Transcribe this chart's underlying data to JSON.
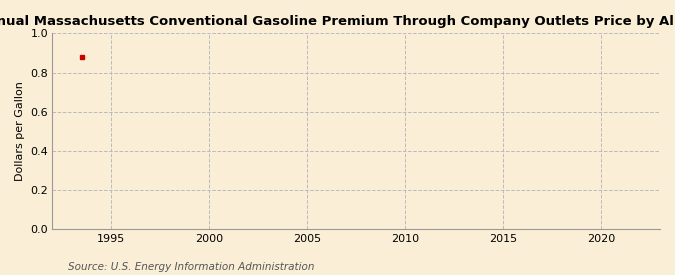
{
  "title": "Annual Massachusetts Conventional Gasoline Premium Through Company Outlets Price by All Sellers",
  "ylabel": "Dollars per Gallon",
  "source": "Source: U.S. Energy Information Administration",
  "background_color": "#faefd6",
  "data_x": [
    1993.5
  ],
  "data_y": [
    0.879
  ],
  "data_color": "#cc0000",
  "xlim": [
    1992,
    2023
  ],
  "ylim": [
    0.0,
    1.0
  ],
  "xticks": [
    1995,
    2000,
    2005,
    2010,
    2015,
    2020
  ],
  "yticks": [
    0.0,
    0.2,
    0.4,
    0.6,
    0.8,
    1.0
  ],
  "grid_color": "#bbbbbb",
  "title_fontsize": 9.5,
  "label_fontsize": 8,
  "tick_fontsize": 8,
  "source_fontsize": 7.5
}
